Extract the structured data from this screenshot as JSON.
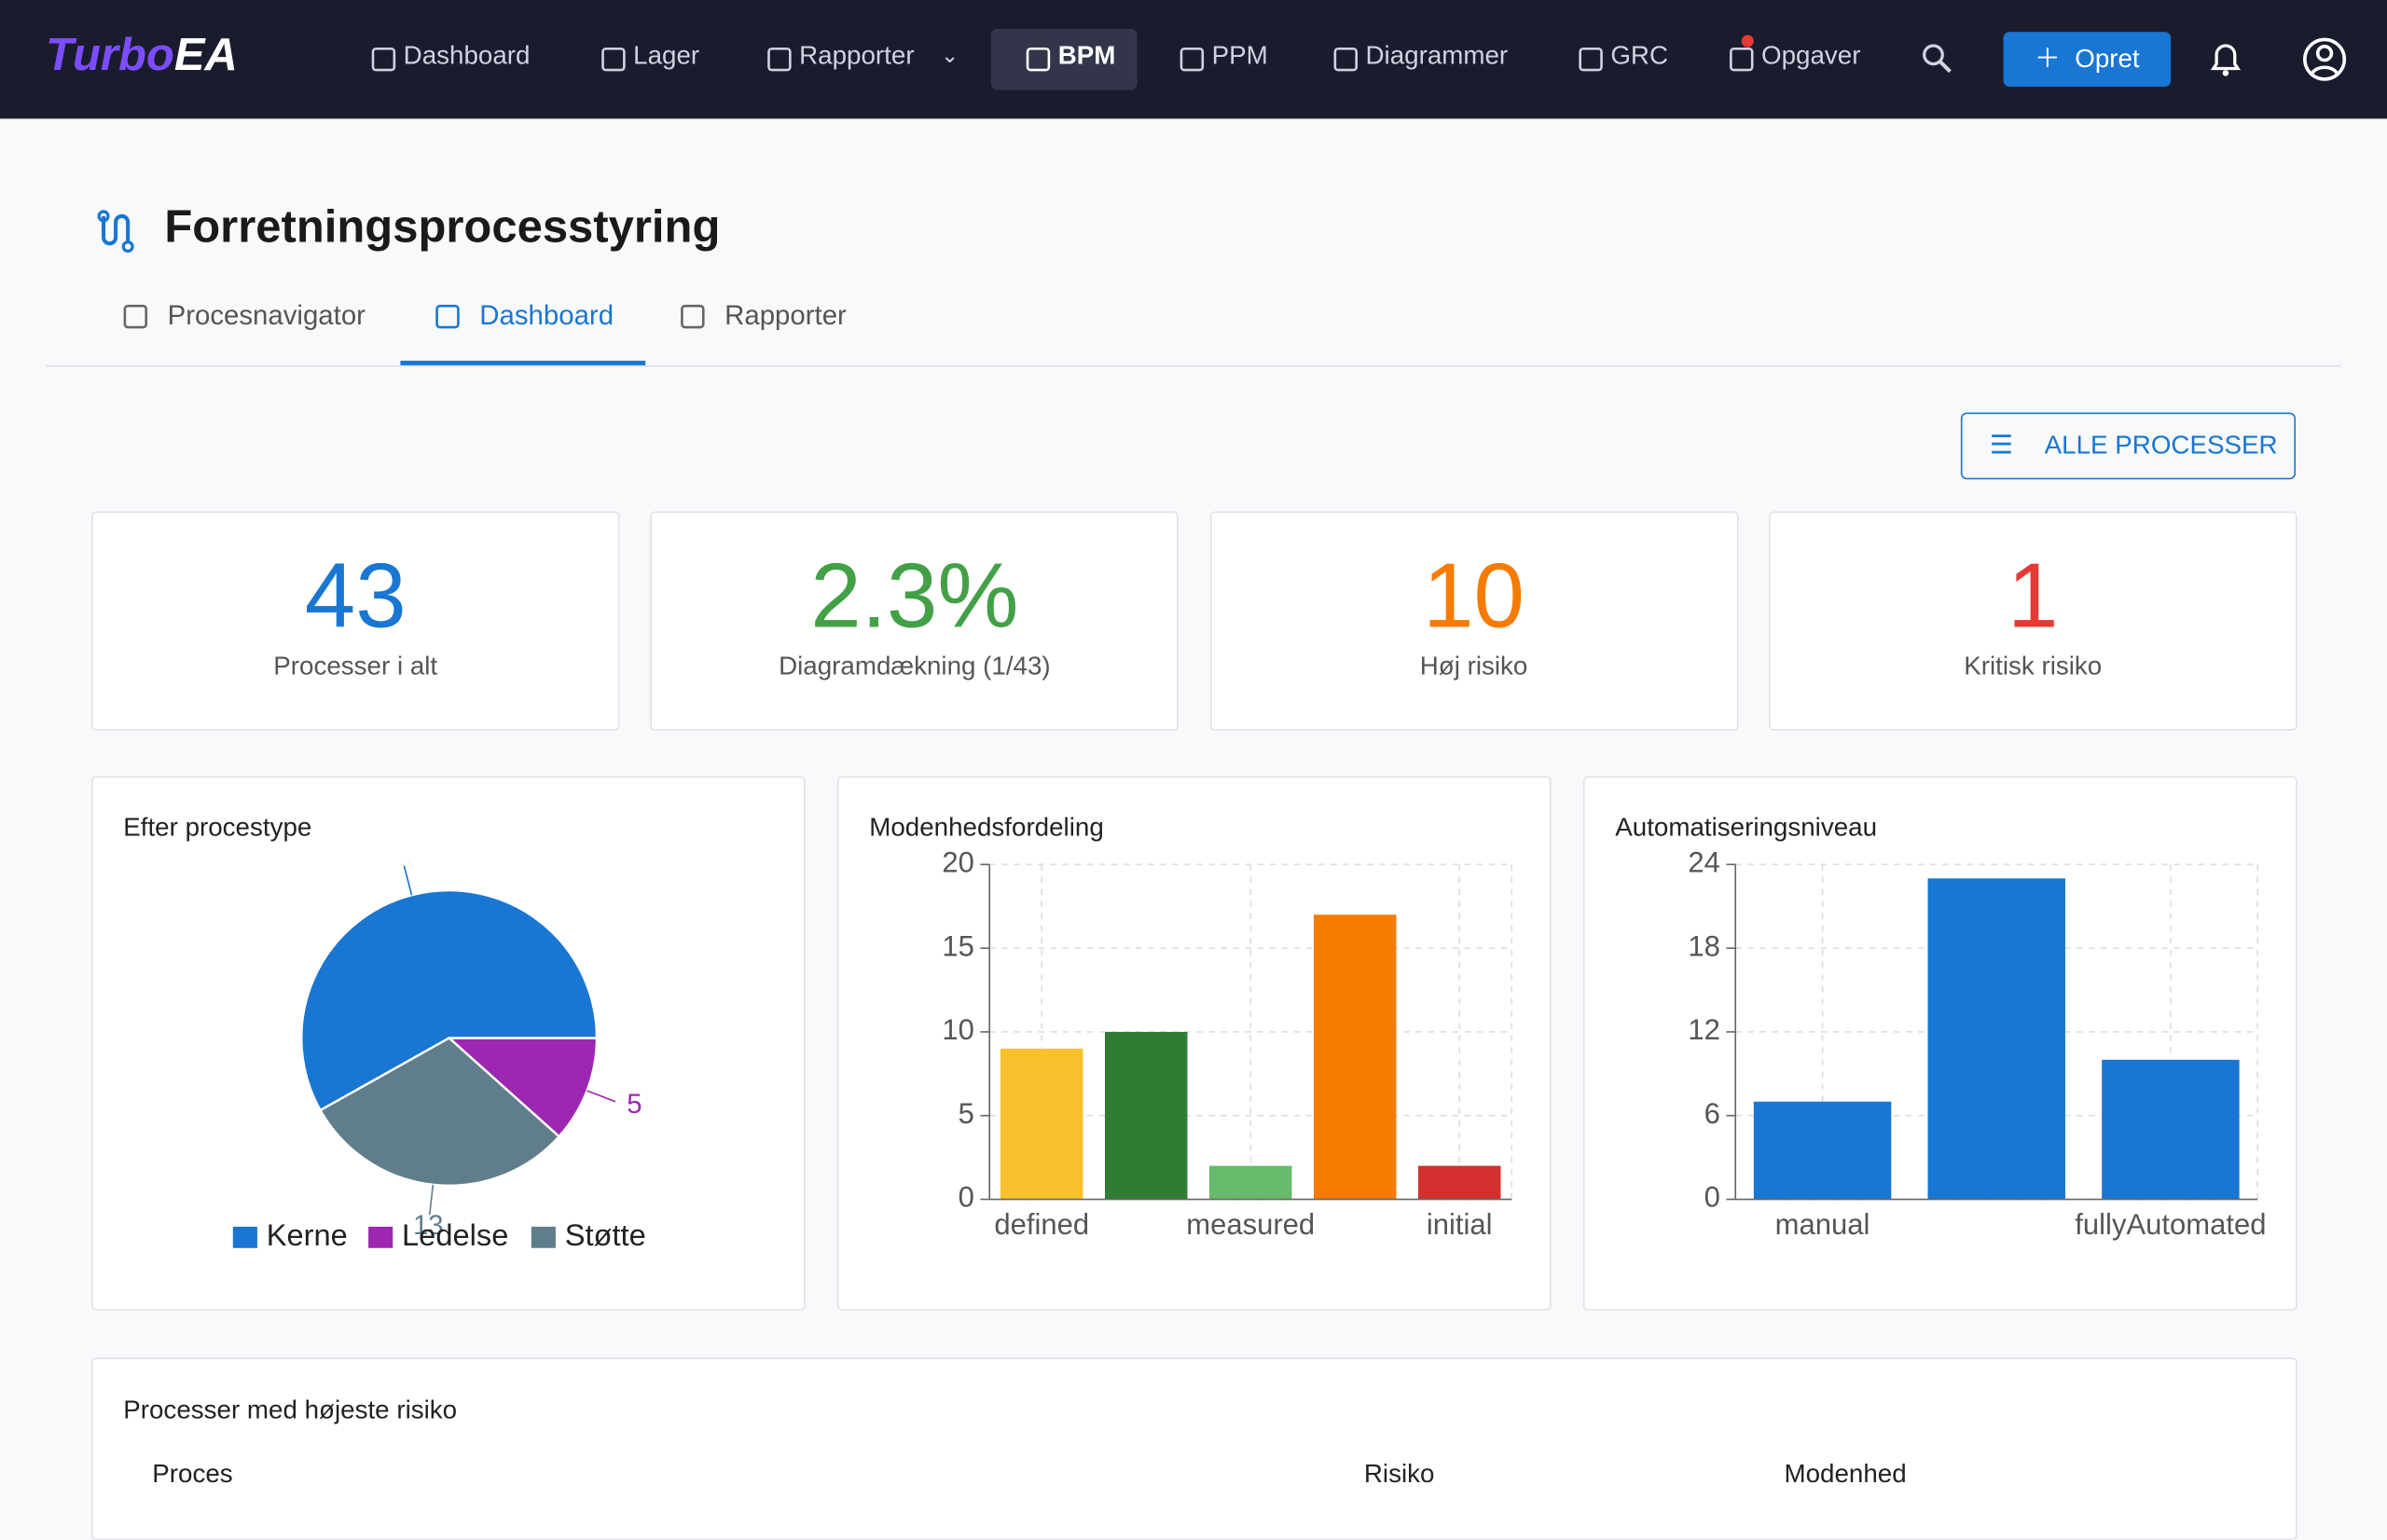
{
  "nav": {
    "logo_a": "Turbo",
    "logo_b": "EA",
    "items": [
      "Dashboard",
      "Lager",
      "Rapporter",
      "BPM",
      "PPM",
      "Diagrammer",
      "GRC",
      "Opgaver"
    ],
    "active": "BPM",
    "create": "Opret"
  },
  "page": {
    "title": "Forretningsprocesstyring",
    "tabs": [
      "Procesnavigator",
      "Dashboard",
      "Rapporter"
    ],
    "active_tab": "Dashboard",
    "button": "ALLE PROCESSER"
  },
  "kpis": [
    {
      "value": "43",
      "label": "Processer i alt",
      "color": "#1976d2"
    },
    {
      "value": "2.3%",
      "label": "Diagramdækning (1/43)",
      "color": "#43a047"
    },
    {
      "value": "10",
      "label": "Høj risiko",
      "color": "#f57c00"
    },
    {
      "value": "1",
      "label": "Kritisk risiko",
      "color": "#e53935"
    }
  ],
  "chart_data": [
    {
      "type": "pie",
      "title": "Efter procestype",
      "categories": [
        "Kerne",
        "Ledelse",
        "Støtte"
      ],
      "values": [
        25,
        5,
        13
      ],
      "colors": [
        "#1976d2",
        "#9c27b0",
        "#607d8b"
      ],
      "legend": "bottom"
    },
    {
      "type": "bar",
      "title": "Modenhedsfordeling",
      "categories": [
        "defined",
        null,
        "measured",
        null,
        "initial"
      ],
      "values": [
        9,
        10,
        2,
        17,
        2
      ],
      "colors": [
        "#fbc02d",
        "#2e7d32",
        "#66bb6a",
        "#f57c00",
        "#d32f2f"
      ],
      "ylim": [
        0,
        20
      ],
      "yticks": [
        0,
        5,
        10,
        15,
        20
      ],
      "grid": true
    },
    {
      "type": "bar",
      "title": "Automatiseringsniveau",
      "categories": [
        "manual",
        null,
        "fullyAutomated"
      ],
      "values": [
        7,
        23,
        10
      ],
      "colors": [
        "#1976d2",
        "#1976d2",
        "#1976d2"
      ],
      "ylim": [
        0,
        24
      ],
      "yticks": [
        0,
        6,
        12,
        18,
        24
      ],
      "grid": true
    }
  ],
  "table": {
    "title": "Processer med højeste risiko",
    "columns": [
      "Proces",
      "Risiko",
      "Modenhed"
    ]
  }
}
